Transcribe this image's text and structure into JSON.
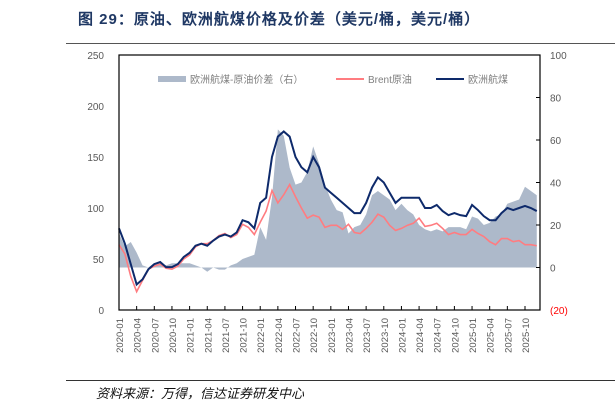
{
  "header": {
    "title": "图 29：原油、欧洲航煤价格及价差（美元/桶，美元/桶）"
  },
  "footer": {
    "source": "资料来源：万得，信达证券研发中心"
  },
  "chart_data": {
    "type": "line",
    "title": "原油、欧洲航煤价格及价差（美元/桶，美元/桶）",
    "start": "2020-01",
    "frequency": "monthly",
    "x_ticks": [
      "2020-01",
      "2020-04",
      "2020-07",
      "2020-10",
      "2021-01",
      "2021-04",
      "2021-07",
      "2021-10",
      "2022-01",
      "2022-04",
      "2022-07",
      "2022-10",
      "2023-01",
      "2023-04",
      "2023-07",
      "2023-10",
      "2024-01",
      "2024-04",
      "2024-07",
      "2024-10",
      "2025-01",
      "2025-04",
      "2025-07",
      "2025-10"
    ],
    "y_left": {
      "ticks": [
        "0",
        "50",
        "100",
        "150",
        "200",
        "250"
      ],
      "range": [
        0,
        250
      ]
    },
    "y_right": {
      "ticks": [
        "(20)",
        "0",
        "20",
        "40",
        "60",
        "80",
        "100"
      ],
      "range": [
        -20,
        100
      ]
    },
    "legend": [
      "欧洲航煤-原油价差（右）",
      "Brent原油",
      "欧洲航煤"
    ],
    "legend_position": "top",
    "series": [
      {
        "name": "欧洲航煤-原油价差（右）",
        "axis": "right",
        "type": "area",
        "color": "#adb9ca",
        "values": [
          16,
          10,
          12,
          7,
          1,
          0,
          2,
          2,
          1,
          2,
          2,
          2,
          2,
          1,
          0,
          -2,
          0,
          -1,
          -1,
          1,
          2,
          4,
          5,
          6,
          19,
          13,
          33,
          65,
          62,
          47,
          39,
          40,
          45,
          57,
          49,
          39,
          32,
          27,
          26,
          16,
          19,
          20,
          25,
          34,
          36,
          34,
          32,
          27,
          30,
          27,
          25,
          20,
          18,
          17,
          18,
          17,
          19,
          19,
          19,
          18,
          24,
          23,
          20,
          21,
          24,
          25,
          30,
          31,
          32,
          38,
          36,
          34
        ]
      },
      {
        "name": "Brent原油",
        "axis": "left",
        "type": "line",
        "color": "#ff7c80",
        "values": [
          64,
          55,
          33,
          18,
          29,
          40,
          43,
          45,
          41,
          40,
          43,
          50,
          54,
          62,
          65,
          65,
          68,
          73,
          75,
          71,
          74,
          84,
          81,
          74,
          86,
          97,
          117,
          105,
          113,
          123,
          111,
          100,
          90,
          93,
          91,
          81,
          83,
          83,
          79,
          84,
          76,
          75,
          80,
          86,
          94,
          91,
          83,
          78,
          80,
          83,
          85,
          90,
          82,
          83,
          85,
          80,
          74,
          76,
          74,
          74,
          79,
          75,
          72,
          67,
          64,
          70,
          70,
          67,
          68,
          64,
          64,
          63
        ]
      },
      {
        "name": "欧洲航煤",
        "axis": "left",
        "type": "line",
        "color": "#0e2a6b",
        "values": [
          80,
          65,
          45,
          25,
          30,
          40,
          45,
          47,
          42,
          42,
          45,
          52,
          56,
          63,
          65,
          63,
          68,
          72,
          74,
          72,
          76,
          88,
          86,
          80,
          105,
          110,
          150,
          170,
          175,
          170,
          150,
          140,
          135,
          150,
          140,
          120,
          115,
          110,
          105,
          100,
          95,
          95,
          105,
          120,
          130,
          125,
          115,
          105,
          110,
          110,
          110,
          110,
          100,
          100,
          103,
          97,
          93,
          95,
          93,
          92,
          103,
          98,
          92,
          88,
          88,
          95,
          100,
          98,
          100,
          102,
          100,
          97
        ]
      }
    ]
  }
}
